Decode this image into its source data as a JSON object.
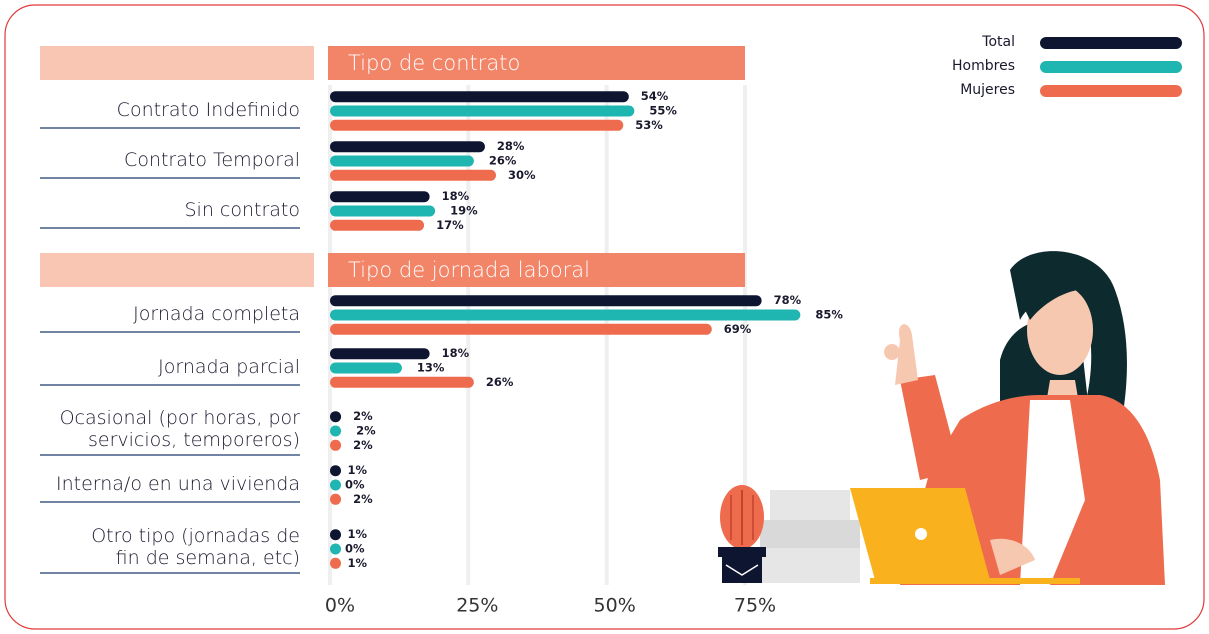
{
  "chart_data": {
    "type": "bar",
    "orientation": "horizontal",
    "sections": [
      {
        "title": "Tipo de contrato",
        "categories": [
          "Contrato Indefinido",
          "Contrato Temporal",
          "Sin contrato"
        ]
      },
      {
        "title": "Tipo de jornada laboral",
        "categories": [
          "Jornada completa",
          "Jornada parcial",
          "Ocasional (por horas, por\nservicios, temporeros)",
          "Interna/o en una vivienda",
          "Otro tipo (jornadas de\nfin de semana, etc)"
        ]
      }
    ],
    "series": [
      {
        "name": "Total",
        "color": "#0d1530",
        "values": [
          54,
          28,
          18,
          78,
          18,
          2,
          1,
          1
        ],
        "value_labels": [
          "54%",
          "28%",
          "18%",
          "78%",
          "18%",
          "2%",
          "1%",
          "1%"
        ]
      },
      {
        "name": "Hombres",
        "color": "#1fb5b0",
        "values": [
          55,
          26,
          19,
          85,
          13,
          2,
          0,
          0
        ],
        "value_labels": [
          "55%",
          "26%",
          "19%",
          "85%",
          "13%",
          "2%",
          "0%",
          "0%"
        ]
      },
      {
        "name": "Mujeres",
        "color": "#ee6b4d",
        "values": [
          53,
          30,
          17,
          69,
          26,
          2,
          2,
          1
        ],
        "value_labels": [
          "53%",
          "30%",
          "17%",
          "69%",
          "26%",
          "2%",
          "2%",
          "1%"
        ]
      }
    ],
    "xlim": [
      0,
      75
    ],
    "xticks": [
      {
        "value": 0,
        "label": "0%"
      },
      {
        "value": 25,
        "label": "25%"
      },
      {
        "value": 50,
        "label": "50%"
      },
      {
        "value": 75,
        "label": "75%"
      }
    ],
    "grid": true,
    "legend": "top-right"
  }
}
